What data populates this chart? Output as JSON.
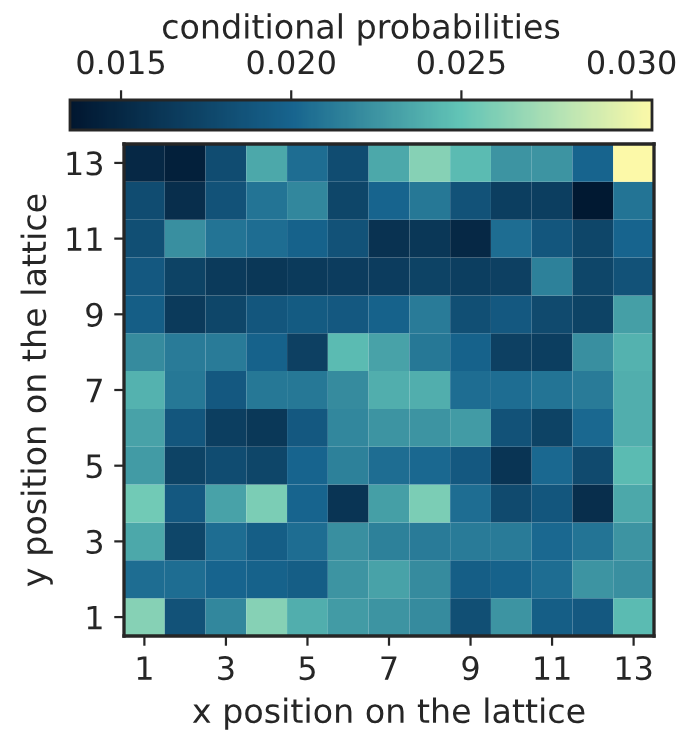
{
  "chart_data": {
    "type": "heatmap",
    "xlabel": "x position on the lattice",
    "ylabel": "y position on the lattice",
    "clabel": "conditional probabilities",
    "categories": [
      "1",
      null,
      "3",
      null,
      "5",
      null,
      "7",
      null,
      "9",
      null,
      "11",
      null,
      "13"
    ],
    "y_categories": [
      "13",
      null,
      "11",
      null,
      "9",
      null,
      "7",
      null,
      "5",
      null,
      "3",
      null,
      "1"
    ],
    "clim": [
      0.0135,
      0.0306
    ],
    "cticks": [
      0.015,
      {
        "value": 0.02,
        "label": "0.020"
      },
      0.025,
      {
        "value": 0.03,
        "label": "0.030"
      }
    ],
    "cells": [
      [
        0.015,
        0.0143,
        0.018,
        0.0235,
        0.0205,
        0.018,
        0.0235,
        0.0262,
        0.0245,
        0.0225,
        0.0225,
        0.02,
        0.0306
      ],
      [
        0.018,
        0.0155,
        0.0185,
        0.0208,
        0.0218,
        0.0175,
        0.02,
        0.021,
        0.0185,
        0.0168,
        0.0168,
        0.0137,
        0.0208
      ],
      [
        0.0182,
        0.0222,
        0.0208,
        0.0205,
        0.0198,
        0.0185,
        0.0158,
        0.0162,
        0.015,
        0.0205,
        0.0188,
        0.0175,
        0.02
      ],
      [
        0.019,
        0.0172,
        0.0165,
        0.0162,
        0.0165,
        0.0167,
        0.0167,
        0.0172,
        0.0168,
        0.017,
        0.0215,
        0.0175,
        0.0185
      ],
      [
        0.0195,
        0.0165,
        0.0175,
        0.0188,
        0.0192,
        0.019,
        0.0198,
        0.0212,
        0.0182,
        0.019,
        0.0178,
        0.0172,
        0.023
      ],
      [
        0.022,
        0.0212,
        0.0212,
        0.0198,
        0.017,
        0.0245,
        0.0232,
        0.021,
        0.0198,
        0.017,
        0.0168,
        0.0222,
        0.024
      ],
      [
        0.024,
        0.021,
        0.019,
        0.021,
        0.021,
        0.022,
        0.0238,
        0.0238,
        0.0205,
        0.0205,
        0.0208,
        0.0212,
        0.0238
      ],
      [
        0.0232,
        0.0188,
        0.0168,
        0.0163,
        0.019,
        0.0218,
        0.0225,
        0.0225,
        0.0228,
        0.0185,
        0.0172,
        0.0202,
        0.0238
      ],
      [
        0.0228,
        0.0172,
        0.018,
        0.0175,
        0.02,
        0.0215,
        0.0205,
        0.0202,
        0.019,
        0.016,
        0.0202,
        0.0178,
        0.0245
      ],
      [
        0.0255,
        0.019,
        0.0232,
        0.0258,
        0.02,
        0.016,
        0.023,
        0.0258,
        0.0205,
        0.0178,
        0.0188,
        0.0155,
        0.0235
      ],
      [
        0.0235,
        0.0175,
        0.0205,
        0.0195,
        0.0205,
        0.0222,
        0.0215,
        0.0212,
        0.0212,
        0.0212,
        0.0202,
        0.0208,
        0.0225
      ],
      [
        0.0205,
        0.0205,
        0.02,
        0.0198,
        0.0195,
        0.0225,
        0.0232,
        0.022,
        0.0195,
        0.0198,
        0.0205,
        0.0225,
        0.0222
      ],
      [
        0.0262,
        0.0185,
        0.0218,
        0.0262,
        0.0238,
        0.0228,
        0.0225,
        0.022,
        0.0182,
        0.0225,
        0.0195,
        0.019,
        0.0245
      ]
    ]
  }
}
